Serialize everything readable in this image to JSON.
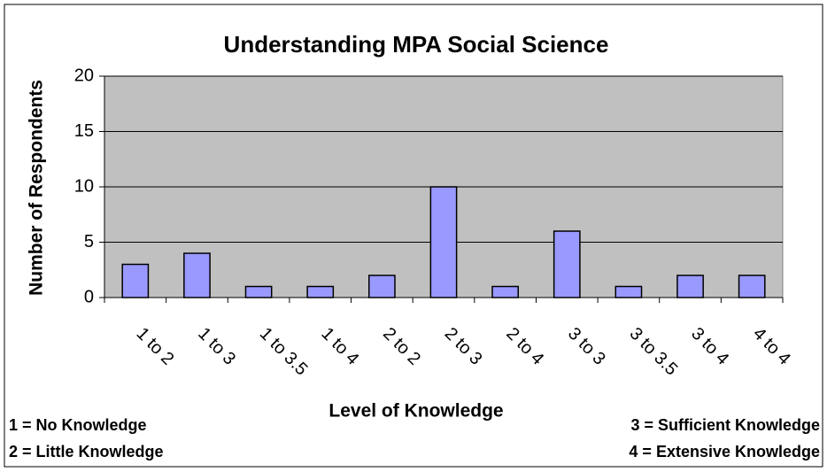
{
  "chart_data": {
    "type": "bar",
    "title": "Understanding MPA Social Science",
    "x_label": "Level of Knowledge",
    "y_label": "Number of Respondents",
    "categories": [
      "1 to 2",
      "1 to 3",
      "1 to 3.5",
      "1 to 4",
      "2 to 2",
      "2 to 3",
      "2 to 4",
      "3 to 3",
      "3 to 3.5",
      "3 to 4",
      "4 to 4"
    ],
    "values": [
      3,
      4,
      1,
      1,
      2,
      10,
      1,
      6,
      1,
      2,
      2
    ],
    "color": "#9999ff",
    "ylim": [
      0,
      20
    ],
    "yticks": [
      0,
      5,
      10,
      15,
      20
    ],
    "grid": true,
    "annotations": [
      "1 = No Knowledge",
      "2 = Little Knowledge",
      "3 = Sufficient Knowledge",
      "4 = Extensive Knowledge"
    ]
  }
}
